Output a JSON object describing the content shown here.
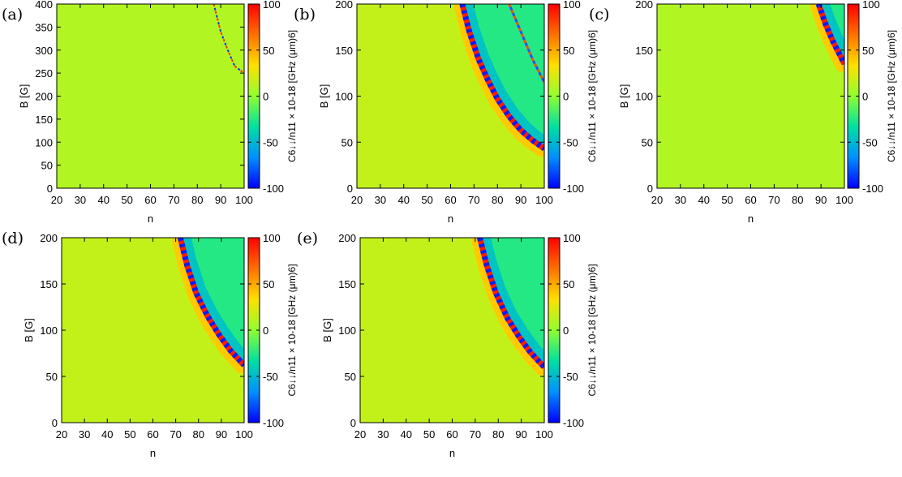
{
  "chart_data": {
    "type": "heatmap",
    "colormap": [
      "#0000ff",
      "#0090ff",
      "#00e0a0",
      "#90ff30",
      "#ffe000",
      "#ff7000",
      "#ff0000"
    ],
    "panels": [
      {
        "label": "(a)",
        "xlabel": "n",
        "ylabel": "B [G]",
        "xlim": [
          20,
          100
        ],
        "ylim": [
          0,
          400
        ],
        "xticks": [
          "20",
          "30",
          "40",
          "50",
          "60",
          "70",
          "80",
          "90",
          "100"
        ],
        "yticks": [
          "0",
          "50",
          "100",
          "150",
          "200",
          "250",
          "300",
          "350",
          "400"
        ],
        "background_value": 10,
        "resonance": {
          "points": [
            [
              87,
              400
            ],
            [
              90,
              340
            ],
            [
              93,
              300
            ],
            [
              96,
              265
            ],
            [
              100,
              250
            ]
          ],
          "dashed": true
        },
        "region_value": null,
        "colorbar": {
          "label": "C6↓↓/n11 × 10-18 [GHz (μm)6]",
          "min": -100,
          "max": 100,
          "ticks": [
            "-100",
            "-50",
            "0",
            "50",
            "100"
          ]
        }
      },
      {
        "label": "(b)",
        "xlabel": "n",
        "ylabel": "B [G]",
        "xlim": [
          20,
          100
        ],
        "ylim": [
          0,
          200
        ],
        "xticks": [
          "20",
          "30",
          "40",
          "50",
          "60",
          "70",
          "80",
          "90",
          "100"
        ],
        "yticks": [
          "0",
          "50",
          "100",
          "150",
          "200"
        ],
        "background_value": 15,
        "resonance": {
          "points": [
            [
              65,
              200
            ],
            [
              68,
              170
            ],
            [
              72,
              140
            ],
            [
              76,
              117
            ],
            [
              80,
              97
            ],
            [
              85,
              78
            ],
            [
              90,
              63
            ],
            [
              95,
              52
            ],
            [
              100,
              43
            ]
          ],
          "dashed": false
        },
        "secondary_resonance": {
          "points": [
            [
              85,
              200
            ],
            [
              90,
              170
            ],
            [
              95,
              140
            ],
            [
              100,
              115
            ]
          ],
          "dashed": true
        },
        "region_value": -25,
        "colorbar": {
          "label": "C6↓↓/n11 × 10-18 [GHz (μm)6]",
          "min": -100,
          "max": 100,
          "ticks": [
            "-100",
            "-50",
            "0",
            "50",
            "100"
          ]
        }
      },
      {
        "label": "(c)",
        "xlabel": "n",
        "ylabel": "B [G]",
        "xlim": [
          20,
          100
        ],
        "ylim": [
          0,
          200
        ],
        "xticks": [
          "20",
          "30",
          "40",
          "50",
          "60",
          "70",
          "80",
          "90",
          "100"
        ],
        "yticks": [
          "0",
          "50",
          "100",
          "150",
          "200"
        ],
        "background_value": 10,
        "resonance": {
          "points": [
            [
              89,
              200
            ],
            [
              92,
              178
            ],
            [
              95,
              160
            ],
            [
              98,
              145
            ],
            [
              100,
              135
            ]
          ],
          "dashed": false
        },
        "region_value": -25,
        "colorbar": {
          "label": "C6↓↓/n11 × 10-18 [GHz (μm)6]",
          "min": -100,
          "max": 100,
          "ticks": [
            "-100",
            "-50",
            "0",
            "50",
            "100"
          ]
        }
      },
      {
        "label": "(d)",
        "xlabel": "n",
        "ylabel": "B [G]",
        "xlim": [
          20,
          100
        ],
        "ylim": [
          0,
          200
        ],
        "xticks": [
          "20",
          "30",
          "40",
          "50",
          "60",
          "70",
          "80",
          "90",
          "100"
        ],
        "yticks": [
          "0",
          "50",
          "100",
          "150",
          "200"
        ],
        "background_value": 15,
        "resonance": {
          "points": [
            [
              72,
              200
            ],
            [
              75,
              170
            ],
            [
              79,
              140
            ],
            [
              84,
              115
            ],
            [
              89,
              95
            ],
            [
              94,
              78
            ],
            [
              100,
              62
            ]
          ],
          "dashed": false
        },
        "region_value": -25,
        "colorbar": {
          "label": "C6↓↓/n11 × 10-18 [GHz (μm)6]",
          "min": -100,
          "max": 100,
          "ticks": [
            "-100",
            "-50",
            "0",
            "50",
            "100"
          ]
        }
      },
      {
        "label": "(e)",
        "xlabel": "n",
        "ylabel": "B [G]",
        "xlim": [
          20,
          100
        ],
        "ylim": [
          0,
          200
        ],
        "xticks": [
          "20",
          "30",
          "40",
          "50",
          "60",
          "70",
          "80",
          "90",
          "100"
        ],
        "yticks": [
          "0",
          "50",
          "100",
          "150",
          "200"
        ],
        "background_value": 15,
        "resonance": {
          "points": [
            [
              72,
              200
            ],
            [
              75,
              170
            ],
            [
              79,
              140
            ],
            [
              84,
              113
            ],
            [
              89,
              93
            ],
            [
              94,
              76
            ],
            [
              100,
              60
            ]
          ],
          "dashed": false
        },
        "region_value": -25,
        "colorbar": {
          "label": "C6↓↓/n11 × 10-18 [GHz (μm)6]",
          "min": -100,
          "max": 100,
          "ticks": [
            "-100",
            "-50",
            "0",
            "50",
            "100"
          ]
        }
      }
    ]
  }
}
